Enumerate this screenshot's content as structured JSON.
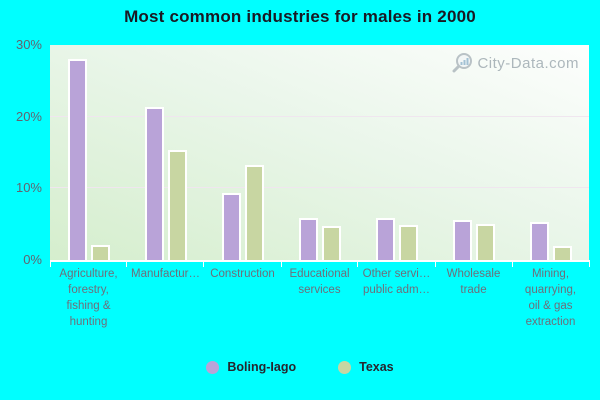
{
  "title": "Most common industries for males in 2000",
  "watermark": {
    "text": "City-Data.com"
  },
  "legend": [
    {
      "label": "Boling-Iago",
      "color": "#b9a3d8"
    },
    {
      "label": "Texas",
      "color": "#c8d6a2"
    }
  ],
  "chart_data": {
    "type": "bar",
    "title": "Most common industries for males in 2000",
    "ylabel": "",
    "xlabel": "",
    "ylim": [
      0,
      30
    ],
    "y_ticks": [
      "30%",
      "20%",
      "10%",
      "0%"
    ],
    "y_tick_values": [
      30,
      20,
      10,
      0
    ],
    "gridline_values": [
      10,
      20
    ],
    "grid": "horizontal",
    "legend_position": "bottom-center",
    "categories": [
      "Agriculture, forestry, fishing & hunting",
      "Manufacturing",
      "Construction",
      "Educational services",
      "Other services, public administration",
      "Wholesale trade",
      "Mining, quarrying, oil & gas extraction"
    ],
    "category_display_lines": [
      [
        "Agriculture,",
        "forestry,",
        "fishing &",
        "hunting"
      ],
      [
        "Manufactur…"
      ],
      [
        "Construction"
      ],
      [
        "Educational",
        "services"
      ],
      [
        "Other servi…",
        "public adm…"
      ],
      [
        "Wholesale",
        "trade"
      ],
      [
        "Mining,",
        "quarrying,",
        "oil & gas",
        "extraction"
      ]
    ],
    "series": [
      {
        "name": "Boling-Iago",
        "color": "#b9a3d8",
        "values": [
          28.0,
          21.4,
          9.3,
          5.9,
          5.9,
          5.6,
          5.3
        ]
      },
      {
        "name": "Texas",
        "color": "#c8d6a2",
        "values": [
          2.1,
          15.4,
          13.3,
          4.8,
          4.9,
          5.0,
          1.9
        ]
      }
    ]
  }
}
